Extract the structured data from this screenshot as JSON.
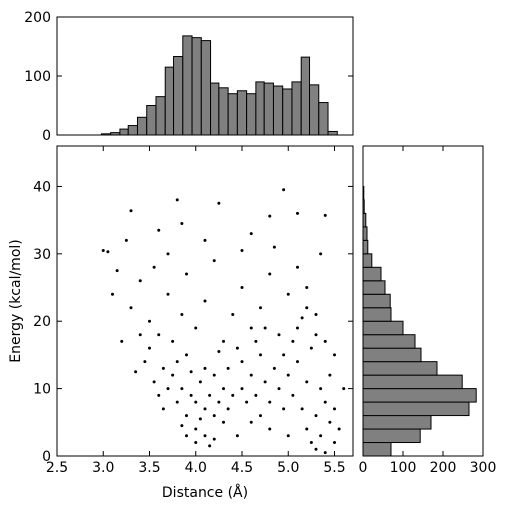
{
  "chart_data": [
    {
      "type": "histogram",
      "orientation": "vertical",
      "color": "#808080",
      "edgecolor": "#000000",
      "bins": [
        2.98,
        3.08,
        3.18,
        3.27,
        3.37,
        3.47,
        3.57,
        3.67,
        3.76,
        3.86,
        3.96,
        4.06,
        4.16,
        4.25,
        4.35,
        4.45,
        4.55,
        4.65,
        4.74,
        4.84,
        4.94,
        5.04,
        5.14,
        5.23,
        5.33,
        5.43,
        5.53
      ],
      "values": [
        2,
        4,
        10,
        16,
        30,
        50,
        65,
        115,
        133,
        168,
        165,
        160,
        88,
        80,
        70,
        75,
        70,
        90,
        88,
        83,
        78,
        90,
        132,
        85,
        55,
        6
      ],
      "xlim": [
        2.5,
        5.7
      ],
      "ylim": [
        0,
        200
      ],
      "yticks": [
        0,
        100,
        200
      ]
    },
    {
      "type": "scatter",
      "color": "#000000",
      "x_label": "Distance (Å)",
      "y_label": "Energy (kcal/mol)",
      "x": [
        3.8,
        3.85,
        3.9,
        3.95,
        4.0,
        4.0,
        4.05,
        4.1,
        4.1,
        4.15,
        4.2,
        4.2,
        4.25,
        4.3,
        3.75,
        3.8,
        3.9,
        3.95,
        4.0,
        4.05,
        4.15,
        4.3,
        4.35,
        4.4,
        3.7,
        3.65,
        3.85,
        4.1,
        4.2,
        3.9,
        4.5,
        4.55,
        4.6,
        4.65,
        4.7,
        4.75,
        4.8,
        4.85,
        4.9,
        4.5,
        4.6,
        4.7,
        4.45,
        4.8,
        4.65,
        5.0,
        5.05,
        5.1,
        5.15,
        5.2,
        5.2,
        5.25,
        5.3,
        5.3,
        5.35,
        5.4,
        5.4,
        5.45,
        5.5,
        5.5,
        5.35,
        5.25,
        5.1,
        5.2,
        5.3,
        5.45,
        5.55,
        5.6,
        5.0,
        4.95,
        3.3,
        3.4,
        3.5,
        3.55,
        3.6,
        3.7,
        3.75,
        3.85,
        3.9,
        4.0,
        4.1,
        4.2,
        4.3,
        4.4,
        4.5,
        4.6,
        4.7,
        4.8,
        4.9,
        5.0,
        5.1,
        5.2,
        5.3,
        5.4,
        5.5,
        3.2,
        3.1,
        3.0,
        3.05,
        3.15,
        3.25,
        3.45,
        3.35,
        3.5,
        3.6,
        3.65,
        3.55,
        3.4,
        4.45,
        4.95,
        5.05,
        4.25,
        4.35,
        4.75,
        5.15,
        3.3,
        3.8,
        4.25,
        4.95,
        4.8,
        5.4,
        5.1,
        3.85,
        4.1,
        4.6,
        3.6,
        4.85,
        5.35,
        3.7,
        4.5
      ],
      "values": [
        8,
        10,
        6,
        9,
        4,
        8,
        11,
        7,
        3,
        9,
        6,
        12,
        8,
        5,
        12,
        14,
        3,
        12.5,
        2,
        5.5,
        1.5,
        10,
        7,
        9,
        10,
        7,
        4.5,
        13,
        2.5,
        15,
        10,
        8,
        12,
        9,
        6,
        11,
        8,
        13,
        10,
        14,
        5,
        15,
        3,
        4,
        17,
        12,
        9,
        14,
        7,
        11,
        4,
        2,
        6,
        1,
        3,
        8,
        0.5,
        5,
        2,
        7,
        10,
        16,
        19,
        22,
        18,
        12,
        4,
        10,
        3,
        7,
        22,
        26,
        20,
        28,
        18,
        24,
        17,
        21,
        27,
        19,
        23,
        29,
        17,
        21,
        25,
        19,
        22,
        27,
        18,
        24,
        28,
        25,
        21,
        17,
        15,
        17,
        24,
        30.5,
        30.3,
        27.5,
        32,
        14,
        12.5,
        16,
        9,
        13,
        11,
        18,
        16,
        15,
        17,
        15.5,
        13,
        19,
        20.5,
        36.4,
        38,
        37.5,
        39.5,
        35.6,
        35.7,
        36,
        34.5,
        32,
        33,
        33.5,
        31,
        30,
        30,
        30.5
      ],
      "xlim": [
        2.5,
        5.7
      ],
      "ylim": [
        0,
        46
      ],
      "xticks": [
        2.5,
        {
          "value": 3,
          "label": "3.0"
        },
        3.5,
        {
          "value": 4,
          "label": "4.0"
        },
        4.5,
        {
          "value": 5,
          "label": "5.0"
        },
        5.5
      ],
      "yticks": [
        0,
        10,
        20,
        30,
        40
      ]
    },
    {
      "type": "histogram",
      "orientation": "horizontal",
      "color": "#808080",
      "edgecolor": "#000000",
      "bins": [
        0,
        2,
        4,
        6,
        8,
        10,
        12,
        14,
        16,
        18,
        20,
        22,
        24,
        26,
        28,
        30,
        32,
        34,
        36,
        38,
        40
      ],
      "values": [
        70,
        143,
        170,
        265,
        283,
        248,
        185,
        145,
        130,
        100,
        70,
        68,
        55,
        45,
        22,
        12,
        10,
        7,
        3,
        2
      ],
      "xlim": [
        0,
        300
      ],
      "ylim": [
        0,
        46
      ],
      "xticks": [
        0,
        100,
        200,
        300
      ]
    }
  ]
}
